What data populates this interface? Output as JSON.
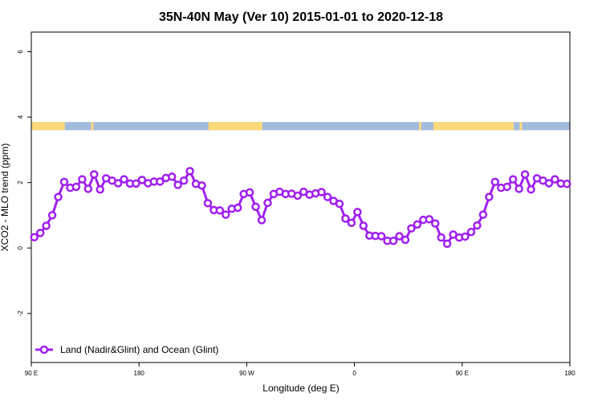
{
  "chart_data": {
    "type": "line",
    "title": "35N-40N May (Ver 10)   2015-01-01 to 2020-12-18",
    "xlabel": "Longitude (deg E)",
    "ylabel": "XCO2 - MLO trend (ppm)",
    "xlim": [
      90,
      540
    ],
    "ylim": [
      -3.5,
      6.6
    ],
    "x_ticks": [
      {
        "value": 90,
        "label": "90 E"
      },
      {
        "value": 180,
        "label": "180"
      },
      {
        "value": 270,
        "label": "90 W"
      },
      {
        "value": 360,
        "label": "0"
      },
      {
        "value": 450,
        "label": "90 E"
      },
      {
        "value": 540,
        "label": "180"
      }
    ],
    "y_ticks": [
      {
        "value": -2,
        "label": "-2"
      },
      {
        "value": 0,
        "label": "0"
      },
      {
        "value": 2,
        "label": "2"
      },
      {
        "value": 4,
        "label": "4"
      },
      {
        "value": 6,
        "label": "6"
      }
    ],
    "legend": {
      "position": "bottom-left"
    },
    "landmask": {
      "y_range": [
        3.6,
        3.85
      ],
      "ocean_color": "#A3BBDC",
      "land_color": "#FCD97A",
      "land_segments": [
        [
          90,
          118
        ],
        [
          140,
          142
        ],
        [
          238,
          283
        ],
        [
          414,
          416
        ],
        [
          426,
          493
        ],
        [
          498,
          500
        ]
      ]
    },
    "series": [
      {
        "name": "Land (Nadir&Glint) and Ocean (Glint)",
        "color": "#A020F0",
        "points": [
          [
            92.5,
            0.33
          ],
          [
            97.5,
            0.46
          ],
          [
            102.5,
            0.68
          ],
          [
            107.5,
            1.0
          ],
          [
            112.5,
            1.56
          ],
          [
            117.5,
            2.02
          ],
          [
            122.5,
            1.84
          ],
          [
            127.5,
            1.87
          ],
          [
            132.5,
            2.1
          ],
          [
            137.5,
            1.81
          ],
          [
            142.5,
            2.25
          ],
          [
            147.5,
            1.79
          ],
          [
            152.5,
            2.13
          ],
          [
            157.5,
            2.06
          ],
          [
            162.5,
            1.98
          ],
          [
            167.5,
            2.1
          ],
          [
            172.5,
            1.97
          ],
          [
            177.5,
            1.97
          ],
          [
            182.5,
            2.08
          ],
          [
            187.5,
            1.98
          ],
          [
            192.5,
            2.03
          ],
          [
            197.5,
            2.03
          ],
          [
            202.5,
            2.14
          ],
          [
            207.5,
            2.18
          ],
          [
            212.5,
            1.93
          ],
          [
            217.5,
            2.06
          ],
          [
            222.5,
            2.35
          ],
          [
            227.5,
            1.96
          ],
          [
            232.5,
            1.91
          ],
          [
            237.5,
            1.37
          ],
          [
            242.5,
            1.16
          ],
          [
            247.5,
            1.15
          ],
          [
            252.5,
            1.02
          ],
          [
            257.5,
            1.2
          ],
          [
            262.5,
            1.23
          ],
          [
            267.5,
            1.65
          ],
          [
            272.5,
            1.7
          ],
          [
            277.5,
            1.26
          ],
          [
            282.5,
            0.85
          ],
          [
            287.5,
            1.38
          ],
          [
            292.5,
            1.65
          ],
          [
            297.5,
            1.72
          ],
          [
            302.5,
            1.65
          ],
          [
            307.5,
            1.66
          ],
          [
            312.5,
            1.6
          ],
          [
            317.5,
            1.72
          ],
          [
            322.5,
            1.63
          ],
          [
            327.5,
            1.67
          ],
          [
            332.5,
            1.71
          ],
          [
            337.5,
            1.56
          ],
          [
            342.5,
            1.44
          ],
          [
            347.5,
            1.35
          ],
          [
            352.5,
            0.9
          ],
          [
            357.5,
            0.77
          ],
          [
            362.5,
            1.1
          ],
          [
            367.5,
            0.68
          ],
          [
            372.5,
            0.38
          ],
          [
            377.5,
            0.37
          ],
          [
            382.5,
            0.36
          ],
          [
            387.5,
            0.22
          ],
          [
            392.5,
            0.22
          ],
          [
            397.5,
            0.36
          ],
          [
            402.5,
            0.25
          ],
          [
            407.5,
            0.6
          ],
          [
            412.5,
            0.72
          ],
          [
            417.5,
            0.86
          ],
          [
            422.5,
            0.88
          ],
          [
            427.5,
            0.75
          ],
          [
            432.5,
            0.32
          ],
          [
            437.5,
            0.13
          ],
          [
            442.5,
            0.41
          ],
          [
            447.5,
            0.32
          ],
          [
            452.5,
            0.35
          ],
          [
            457.5,
            0.49
          ],
          [
            462.5,
            0.69
          ],
          [
            467.5,
            1.02
          ],
          [
            472.5,
            1.56
          ],
          [
            477.5,
            2.02
          ],
          [
            482.5,
            1.84
          ],
          [
            487.5,
            1.87
          ],
          [
            492.5,
            2.1
          ],
          [
            497.5,
            1.81
          ],
          [
            502.5,
            2.25
          ],
          [
            507.5,
            1.79
          ],
          [
            512.5,
            2.13
          ],
          [
            517.5,
            2.06
          ],
          [
            522.5,
            1.98
          ],
          [
            527.5,
            2.1
          ],
          [
            532.5,
            1.97
          ],
          [
            537.5,
            1.96
          ]
        ]
      }
    ]
  }
}
